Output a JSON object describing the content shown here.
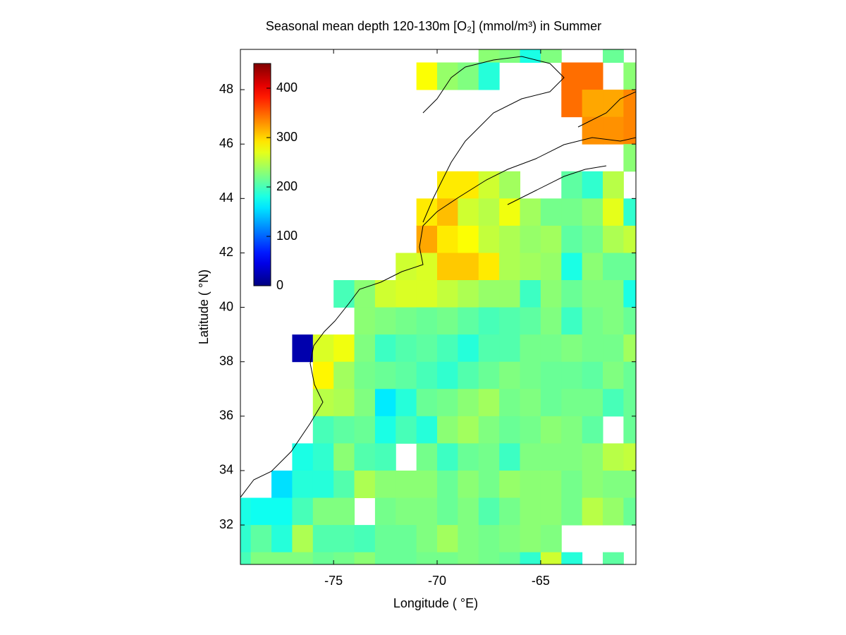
{
  "chart_data": {
    "type": "heatmap",
    "title": "Seasonal mean depth 120-130m [O₂] (mmol/m³) in  Summer",
    "x_label": "Longitude ( °E)",
    "y_label": "Latitude ( °N)",
    "xlim": [
      -79.5,
      -60.4
    ],
    "ylim": [
      30.55,
      49.48
    ],
    "xticks": [
      -75,
      -70,
      -65
    ],
    "yticks": [
      32,
      34,
      36,
      38,
      40,
      42,
      44,
      46,
      48
    ],
    "clim": [
      0,
      450
    ],
    "cticks": [
      0,
      100,
      200,
      300,
      400
    ],
    "colormap": "jet",
    "x": [
      -79.5,
      -78.5,
      -77.5,
      -76.5,
      -75.5,
      -74.5,
      -73.5,
      -72.5,
      -71.5,
      -70.5,
      -69.5,
      -68.5,
      -67.5,
      -66.5,
      -65.5,
      -64.5,
      -63.5,
      -62.5,
      -61.5,
      -60.5
    ],
    "y": [
      49.5,
      48.5,
      47.5,
      46.5,
      45.5,
      44.5,
      43.5,
      42.5,
      41.5,
      40.5,
      39.5,
      38.5,
      37.5,
      36.5,
      35.5,
      34.5,
      33.5,
      32.5,
      31.5,
      30.5
    ],
    "values": [
      [
        null,
        null,
        null,
        null,
        null,
        null,
        null,
        null,
        null,
        null,
        null,
        null,
        230,
        225,
        180,
        225,
        null,
        null,
        215,
        null
      ],
      [
        null,
        null,
        null,
        null,
        null,
        null,
        null,
        null,
        null,
        280,
        235,
        225,
        185,
        null,
        null,
        null,
        345,
        345,
        null,
        230
      ],
      [
        null,
        null,
        null,
        null,
        null,
        null,
        null,
        null,
        null,
        null,
        null,
        null,
        null,
        null,
        null,
        null,
        345,
        320,
        320,
        335
      ],
      [
        null,
        null,
        null,
        null,
        null,
        null,
        null,
        null,
        null,
        null,
        null,
        null,
        null,
        null,
        null,
        null,
        null,
        330,
        330,
        335
      ],
      [
        null,
        null,
        null,
        null,
        null,
        null,
        null,
        null,
        null,
        null,
        null,
        null,
        null,
        null,
        null,
        null,
        null,
        null,
        null,
        230
      ],
      [
        null,
        null,
        null,
        null,
        null,
        null,
        null,
        null,
        null,
        null,
        290,
        290,
        260,
        240,
        null,
        null,
        210,
        190,
        250,
        null
      ],
      [
        null,
        null,
        null,
        null,
        null,
        null,
        null,
        null,
        null,
        290,
        310,
        260,
        250,
        275,
        240,
        220,
        220,
        230,
        270,
        190
      ],
      [
        null,
        null,
        null,
        null,
        null,
        null,
        null,
        null,
        null,
        320,
        290,
        280,
        255,
        245,
        235,
        240,
        210,
        220,
        245,
        255
      ],
      [
        null,
        null,
        null,
        null,
        null,
        null,
        null,
        null,
        260,
        265,
        305,
        305,
        290,
        245,
        240,
        235,
        180,
        230,
        215,
        215
      ],
      [
        null,
        null,
        null,
        null,
        null,
        200,
        230,
        260,
        265,
        265,
        255,
        245,
        235,
        235,
        195,
        230,
        215,
        225,
        225,
        180
      ],
      [
        null,
        null,
        null,
        null,
        null,
        null,
        230,
        225,
        220,
        215,
        220,
        210,
        200,
        205,
        210,
        225,
        195,
        220,
        225,
        215
      ],
      [
        null,
        null,
        null,
        20,
        265,
        275,
        225,
        195,
        205,
        210,
        200,
        185,
        205,
        205,
        220,
        220,
        225,
        220,
        220,
        240
      ],
      [
        null,
        null,
        null,
        null,
        285,
        240,
        220,
        215,
        210,
        200,
        190,
        205,
        215,
        225,
        220,
        215,
        215,
        210,
        225,
        215
      ],
      [
        null,
        null,
        null,
        null,
        250,
        245,
        225,
        160,
        185,
        215,
        220,
        230,
        240,
        220,
        225,
        215,
        220,
        220,
        200,
        215
      ],
      [
        null,
        null,
        null,
        null,
        200,
        210,
        215,
        180,
        200,
        185,
        230,
        240,
        225,
        215,
        220,
        230,
        225,
        210,
        null,
        215
      ],
      [
        null,
        null,
        null,
        180,
        190,
        230,
        205,
        200,
        null,
        220,
        195,
        215,
        220,
        195,
        225,
        225,
        225,
        230,
        250,
        255
      ],
      [
        null,
        null,
        155,
        185,
        185,
        205,
        245,
        230,
        230,
        230,
        215,
        230,
        220,
        235,
        230,
        230,
        220,
        230,
        225,
        225
      ],
      [
        180,
        175,
        175,
        200,
        225,
        225,
        null,
        220,
        225,
        225,
        215,
        225,
        205,
        220,
        230,
        230,
        220,
        250,
        235,
        215
      ],
      [
        190,
        210,
        185,
        245,
        205,
        205,
        200,
        215,
        215,
        225,
        240,
        225,
        220,
        225,
        230,
        225,
        null,
        null,
        null,
        null
      ],
      [
        200,
        225,
        225,
        225,
        215,
        220,
        230,
        215,
        215,
        220,
        220,
        225,
        220,
        215,
        190,
        260,
        185,
        null,
        210,
        null
      ]
    ]
  }
}
